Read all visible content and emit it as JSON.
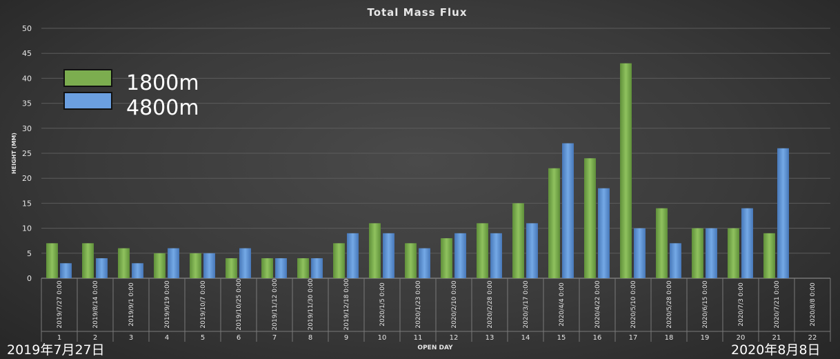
{
  "chart_data": {
    "type": "bar",
    "title": "Total Mass Flux",
    "xlabel": "OPEN DAY",
    "ylabel": "HEIGHT (MM)",
    "ylim": [
      0,
      50
    ],
    "yticks": [
      0,
      5,
      10,
      15,
      20,
      25,
      30,
      35,
      40,
      45,
      50
    ],
    "grid": true,
    "legend_position": "top-left",
    "categories": [
      "1",
      "2",
      "3",
      "4",
      "5",
      "6",
      "7",
      "8",
      "9",
      "10",
      "11",
      "12",
      "13",
      "14",
      "15",
      "16",
      "17",
      "18",
      "19",
      "20",
      "21",
      "22"
    ],
    "dates": [
      "2019/7/27 0:00",
      "2019/8/14 0:00",
      "2019/9/1 0:00",
      "2019/9/19 0:00",
      "2019/10/7 0:00",
      "2019/10/25 0:00",
      "2019/11/12 0:00",
      "2019/11/30 0:00",
      "2019/12/18 0:00",
      "2020/1/5 0:00",
      "2020/1/23 0:00",
      "2020/2/10 0:00",
      "2020/2/28 0:00",
      "2020/3/17 0:00",
      "2020/4/4 0:00",
      "2020/4/22 0:00",
      "2020/5/10 0:00",
      "2020/5/28 0:00",
      "2020/6/15 0:00",
      "2020/7/3 0:00",
      "2020/7/21 0:00",
      "2020/8/8 0:00"
    ],
    "series": [
      {
        "name": "1800m",
        "color": "#7cad4f",
        "values": [
          7,
          7,
          6,
          5,
          5,
          4,
          4,
          4,
          7,
          11,
          7,
          8,
          11,
          15,
          22,
          24,
          43,
          14,
          10,
          10,
          9,
          null
        ]
      },
      {
        "name": "4800m",
        "color": "#5f97d8",
        "values": [
          3,
          4,
          3,
          6,
          5,
          6,
          4,
          4,
          9,
          9,
          6,
          9,
          9,
          11,
          27,
          18,
          10,
          7,
          10,
          14,
          26,
          null
        ]
      }
    ]
  },
  "annotations": {
    "start_label": "2019年7月27日",
    "end_label": "2020年8月8日"
  }
}
